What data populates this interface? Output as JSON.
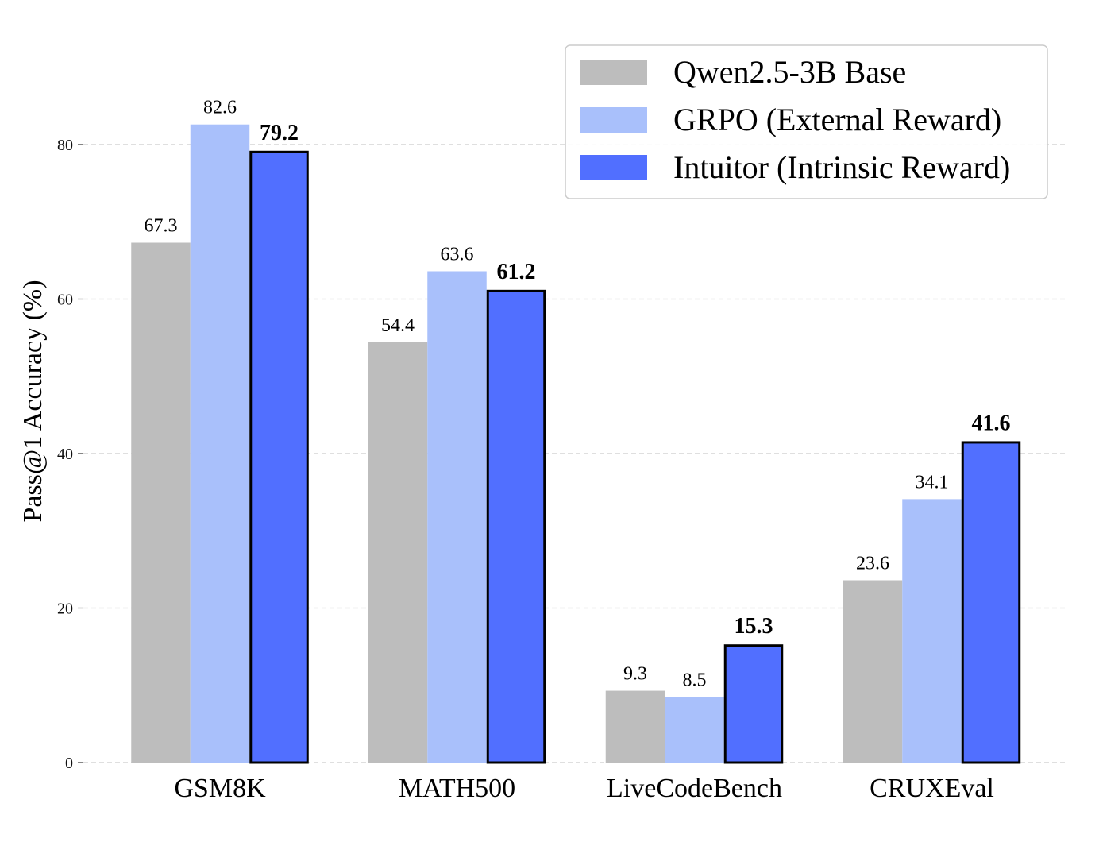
{
  "chart_data": {
    "type": "bar",
    "title": "",
    "xlabel": "",
    "ylabel": "Pass@1 Accuracy (%)",
    "ylim": [
      0,
      95
    ],
    "yticks": [
      0,
      20,
      40,
      60,
      80
    ],
    "grid": true,
    "legend_position": "top-right",
    "categories": [
      "GSM8K",
      "MATH500",
      "LiveCodeBench",
      "CRUXEval"
    ],
    "series": [
      {
        "name": "Qwen2.5-3B Base",
        "color": "#bdbdbd",
        "outlined": false,
        "bold_labels": false,
        "values": [
          67.3,
          54.4,
          9.3,
          23.6
        ],
        "labels": [
          "67.3",
          "54.4",
          "9.3",
          "23.6"
        ]
      },
      {
        "name": "GRPO (External Reward)",
        "color": "#a9c0fb",
        "outlined": false,
        "bold_labels": false,
        "values": [
          82.6,
          63.6,
          8.5,
          34.1
        ],
        "labels": [
          "82.6",
          "63.6",
          "8.5",
          "34.1"
        ]
      },
      {
        "name": "Intuitor (Intrinsic Reward)",
        "color": "#516fff",
        "outlined": true,
        "bold_labels": true,
        "values": [
          79.2,
          61.2,
          15.3,
          41.6
        ],
        "labels": [
          "79.2",
          "61.2",
          "15.3",
          "41.6"
        ]
      }
    ]
  }
}
